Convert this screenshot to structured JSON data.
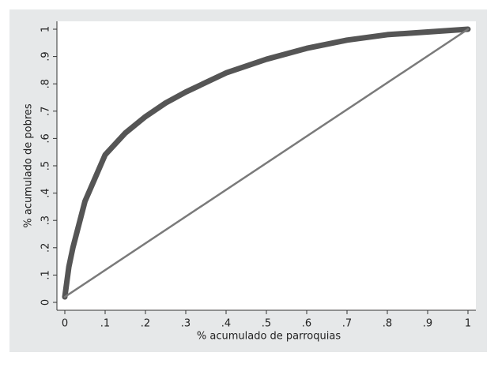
{
  "chart_data": {
    "type": "line",
    "xlabel": "% acumulado de parroquias",
    "ylabel": "% acumulado de pobres",
    "xlim": [
      0,
      1
    ],
    "ylim": [
      0,
      1
    ],
    "xticks": [
      0,
      {
        "value": 0.1,
        "label": ".1"
      },
      {
        "value": 0.2,
        "label": ".2"
      },
      {
        "value": 0.3,
        "label": ".3"
      },
      {
        "value": 0.4,
        "label": ".4"
      },
      {
        "value": 0.5,
        "label": ".5"
      },
      {
        "value": 0.6,
        "label": ".6"
      },
      {
        "value": 0.7,
        "label": ".7"
      },
      {
        "value": 0.8,
        "label": ".8"
      },
      {
        "value": 0.9,
        "label": ".9"
      },
      1
    ],
    "yticks": [
      0,
      {
        "value": 0.1,
        "label": ".1"
      },
      {
        "value": 0.2,
        "label": ".2"
      },
      {
        "value": 0.3,
        "label": ".3"
      },
      {
        "value": 0.4,
        "label": ".4"
      },
      {
        "value": 0.5,
        "label": ".5"
      },
      {
        "value": 0.6,
        "label": ".6"
      },
      {
        "value": 0.7,
        "label": ".7"
      },
      {
        "value": 0.8,
        "label": ".8"
      },
      {
        "value": 0.9,
        "label": ".9"
      },
      1
    ],
    "series": [
      {
        "color": "#555555",
        "x": [
          0,
          0.01,
          0.02,
          0.05,
          0.1,
          0.15,
          0.2,
          0.25,
          0.3,
          0.4,
          0.5,
          0.6,
          0.7,
          0.8,
          0.9,
          1
        ],
        "values": [
          0.02,
          0.13,
          0.2,
          0.37,
          0.54,
          0.62,
          0.68,
          0.73,
          0.77,
          0.84,
          0.89,
          0.93,
          0.96,
          0.98,
          0.99,
          1
        ]
      },
      {
        "color": "#7a7a7a",
        "x": [
          0,
          1
        ],
        "values": [
          0.02,
          1
        ]
      }
    ]
  }
}
